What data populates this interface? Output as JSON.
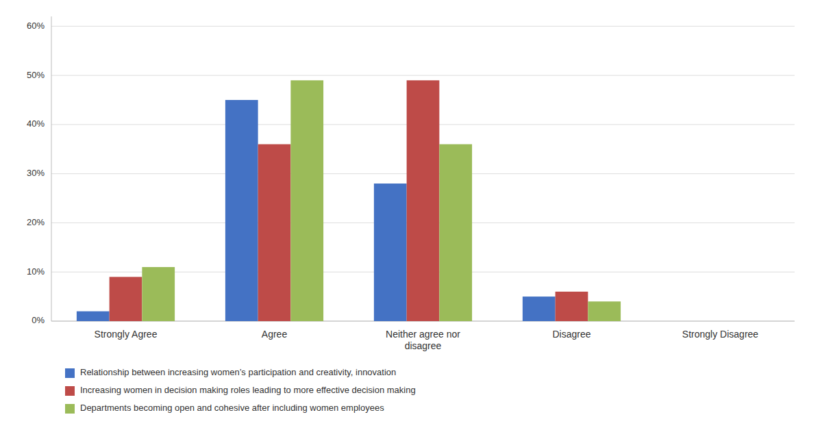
{
  "chart_data": {
    "type": "bar",
    "categories": [
      "Strongly Agree",
      "Agree",
      "Neither agree nor\ndisagree",
      "Disagree",
      "Strongly Disagree"
    ],
    "series": [
      {
        "name": "Relationship between increasing women’s participation and creativity, innovation",
        "color": "#4472C4",
        "values": [
          2,
          45,
          28,
          5,
          0
        ]
      },
      {
        "name": "Increasing women in decision making roles leading to more effective decision making",
        "color": "#BE4B48",
        "values": [
          9,
          36,
          49,
          6,
          0
        ]
      },
      {
        "name": "Departments becoming open and cohesive after including women employees",
        "color": "#9BBB59",
        "values": [
          11,
          49,
          36,
          4,
          0
        ]
      }
    ],
    "ylim": [
      0,
      62
    ],
    "yticks": [
      {
        "value": 0,
        "label": "0%"
      },
      {
        "value": 10,
        "label": "10%"
      },
      {
        "value": 20,
        "label": "20%"
      },
      {
        "value": 30,
        "label": "30%"
      },
      {
        "value": 40,
        "label": "40%"
      },
      {
        "value": 50,
        "label": "50%"
      },
      {
        "value": 60,
        "label": "60%"
      }
    ],
    "grid": true,
    "legend": "bottom"
  }
}
